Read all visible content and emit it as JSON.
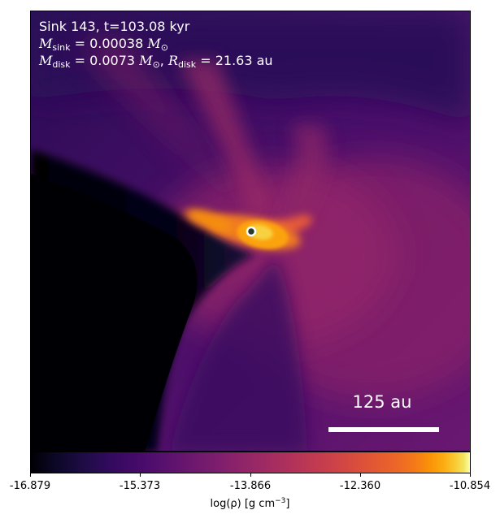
{
  "overlay": {
    "line1": "Sink 143, t=103.08 kyr",
    "line2_var": "M",
    "line2_sub": "sink",
    "line2_eq": " = 0.00038 ",
    "line2_unit_sub": "⊙",
    "line3_var_a": "M",
    "line3_sub_a": "disk",
    "line3_eq_a": " = 0.0073 ",
    "line3_unit_sub": "⊙",
    "line3_sep": ", ",
    "line3_var_b": "R",
    "line3_sub_b": "disk",
    "line3_eq_b": " = 21.63 au"
  },
  "scalebar": {
    "label": "125 au"
  },
  "colorbar": {
    "ticks": [
      "-16.879",
      "-15.373",
      "-13.866",
      "-12.360",
      "-10.854"
    ],
    "label_main": "log(ρ) [g cm",
    "label_exp": "−3",
    "label_close": "]",
    "colormap": "inferno"
  },
  "colors": {
    "sink_marker_fill": "#2b3b2b",
    "sink_marker_ring": "#ffffff"
  },
  "icons": {
    "sink_marker": "circle-marker"
  }
}
